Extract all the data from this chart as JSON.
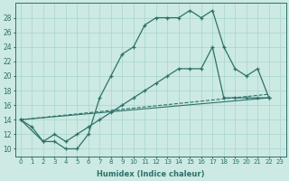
{
  "xlabel": "Humidex (Indice chaleur)",
  "background_color": "#cce9e4",
  "line_color": "#2d7268",
  "grid_color": "#a8d5cd",
  "xlim": [
    -0.5,
    23.5
  ],
  "ylim": [
    9,
    30
  ],
  "xticks": [
    0,
    1,
    2,
    3,
    4,
    5,
    6,
    7,
    8,
    9,
    10,
    11,
    12,
    13,
    14,
    15,
    16,
    17,
    18,
    19,
    20,
    21,
    22,
    23
  ],
  "yticks": [
    10,
    12,
    14,
    16,
    18,
    20,
    22,
    24,
    26,
    28
  ],
  "line1": {
    "x": [
      0,
      1,
      2,
      3,
      4,
      5,
      6,
      7,
      8,
      9,
      10,
      11,
      12,
      13,
      14,
      15,
      16,
      17,
      18,
      19,
      20,
      21,
      22
    ],
    "y": [
      14,
      13,
      11,
      11,
      10,
      10,
      12,
      17,
      20,
      23,
      24,
      27,
      28,
      28,
      28,
      29,
      28,
      29,
      24,
      21,
      20,
      21,
      17
    ]
  },
  "line2": {
    "x": [
      0,
      2,
      3,
      4,
      5,
      6,
      7,
      8,
      9,
      10,
      11,
      12,
      13,
      14,
      15,
      16,
      17,
      18,
      19,
      20,
      21,
      22
    ],
    "y": [
      14,
      11,
      12,
      11,
      12,
      13,
      14,
      15,
      16,
      17,
      18,
      19,
      20,
      21,
      21,
      21,
      24,
      17,
      17,
      17,
      17,
      17
    ]
  },
  "line3_solid": {
    "x": [
      0,
      22
    ],
    "y": [
      14,
      17
    ]
  },
  "line3_dashed": {
    "x": [
      0,
      22
    ],
    "y": [
      14,
      17.5
    ]
  }
}
